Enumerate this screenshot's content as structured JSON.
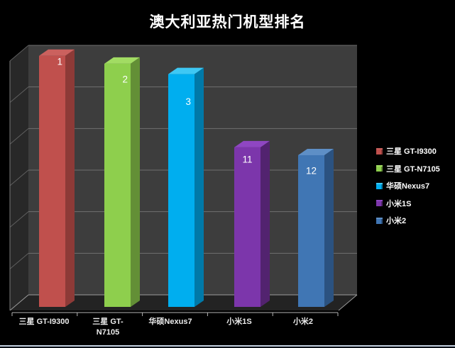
{
  "window": {
    "background": "#000000",
    "bottom_strip": {
      "line_color": "#c2cedd",
      "below_color": "#0b1018"
    }
  },
  "chart_data": {
    "type": "bar",
    "projection": "3d",
    "title": "澳大利亚热门机型排名",
    "categories": [
      "三星 GT-I9300",
      "三星 GT-N7105",
      "华硕Nexus7",
      "小米1S",
      "小米2"
    ],
    "values": [
      1,
      2,
      3,
      11,
      12
    ],
    "bar_value_labels": [
      "1",
      "2",
      "3",
      "11",
      "12"
    ],
    "relative_heights": [
      0.96,
      0.93,
      0.89,
      0.61,
      0.58
    ],
    "legend_position": "right",
    "legend": [
      {
        "label": "三星 GT-I9300",
        "color": "#c0504d"
      },
      {
        "label": "三星 GT-N7105",
        "color": "#8ecf4d"
      },
      {
        "label": "华硕Nexus7",
        "color": "#00aeef"
      },
      {
        "label": "小米1S",
        "color": "#7c36ab"
      },
      {
        "label": "小米2",
        "color": "#4076b4"
      }
    ],
    "grid": true,
    "y_axis_tick_labels_visible": false,
    "colors": {
      "bars": [
        {
          "front": "#c0504d",
          "side": "#8d3a37",
          "top": "#cb615e"
        },
        {
          "front": "#8ecf4d",
          "side": "#638f36",
          "top": "#a2dc63"
        },
        {
          "front": "#00aeef",
          "side": "#0079a8",
          "top": "#3ec8f4"
        },
        {
          "front": "#7c36ab",
          "side": "#52236f",
          "top": "#8f46c2"
        },
        {
          "front": "#4076b4",
          "side": "#2b5280",
          "top": "#5e8fc6"
        }
      ],
      "back_wall": "#3d3d3d",
      "left_wall": "#282828",
      "floor": "#232323",
      "gridline": "#707070",
      "wall_bottom_edge": "#9c9c9c",
      "wall_edge": "#787878",
      "axis_line": "#b4b4b4",
      "title_text": "#ffffff",
      "label_text": "#ededed"
    }
  }
}
